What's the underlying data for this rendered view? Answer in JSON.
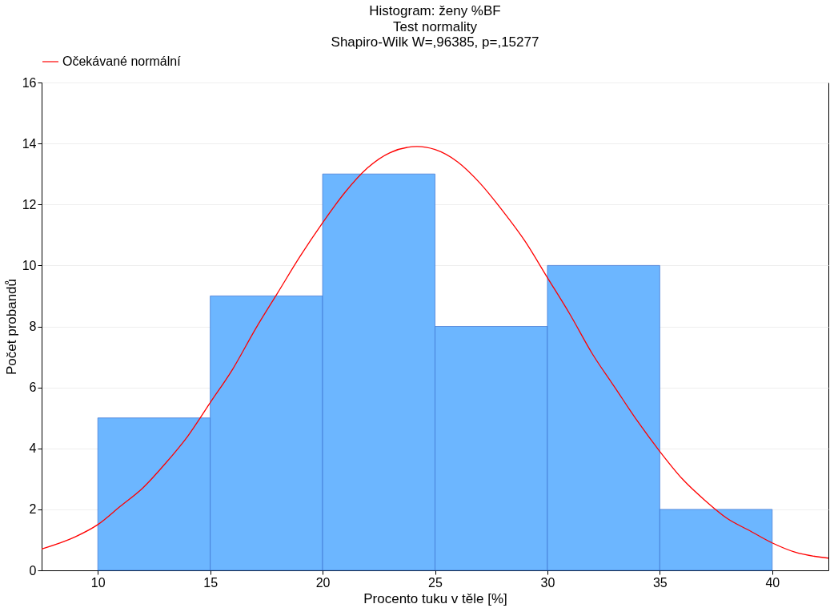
{
  "chart_data": {
    "type": "histogram",
    "title": "Histogram: ženy %BF",
    "subtitle": "Test normality",
    "annotations": [
      "Shapiro-Wilk W=,96385, p=,15277"
    ],
    "xlabel": "Procento tuku v těle [%]",
    "ylabel": "Počet probandů",
    "bins": [
      10,
      15,
      20,
      25,
      30,
      35,
      40
    ],
    "values": [
      5,
      9,
      13,
      8,
      10,
      2
    ],
    "color": "#6cb6ff",
    "series": [
      {
        "type": "line",
        "name": "Očekávané normální",
        "color": "#ff0000",
        "x": [
          7.5,
          9,
          10,
          11,
          12,
          13,
          14,
          15,
          16,
          17,
          18,
          19,
          20,
          21,
          22,
          23,
          24.2,
          25,
          26,
          27,
          28,
          29,
          30,
          31,
          32,
          33,
          34,
          35,
          36,
          37,
          38,
          39,
          40,
          41,
          42.5
        ],
        "values": [
          0.7,
          1.1,
          1.5,
          2.1,
          2.7,
          3.5,
          4.4,
          5.5,
          6.6,
          7.9,
          9.1,
          10.3,
          11.4,
          12.4,
          13.2,
          13.7,
          13.9,
          13.8,
          13.4,
          12.7,
          11.8,
          10.8,
          9.6,
          8.4,
          7.1,
          6.0,
          4.9,
          3.9,
          3.0,
          2.3,
          1.7,
          1.3,
          0.9,
          0.6,
          0.4
        ]
      }
    ],
    "xlim": [
      7.5,
      42.5
    ],
    "xticks": [
      10,
      15,
      20,
      25,
      30,
      35,
      40
    ],
    "ylim": [
      0,
      16
    ],
    "yticks": [
      0,
      2,
      4,
      6,
      8,
      10,
      12,
      14,
      16
    ],
    "grid": "y",
    "legend": "top"
  }
}
